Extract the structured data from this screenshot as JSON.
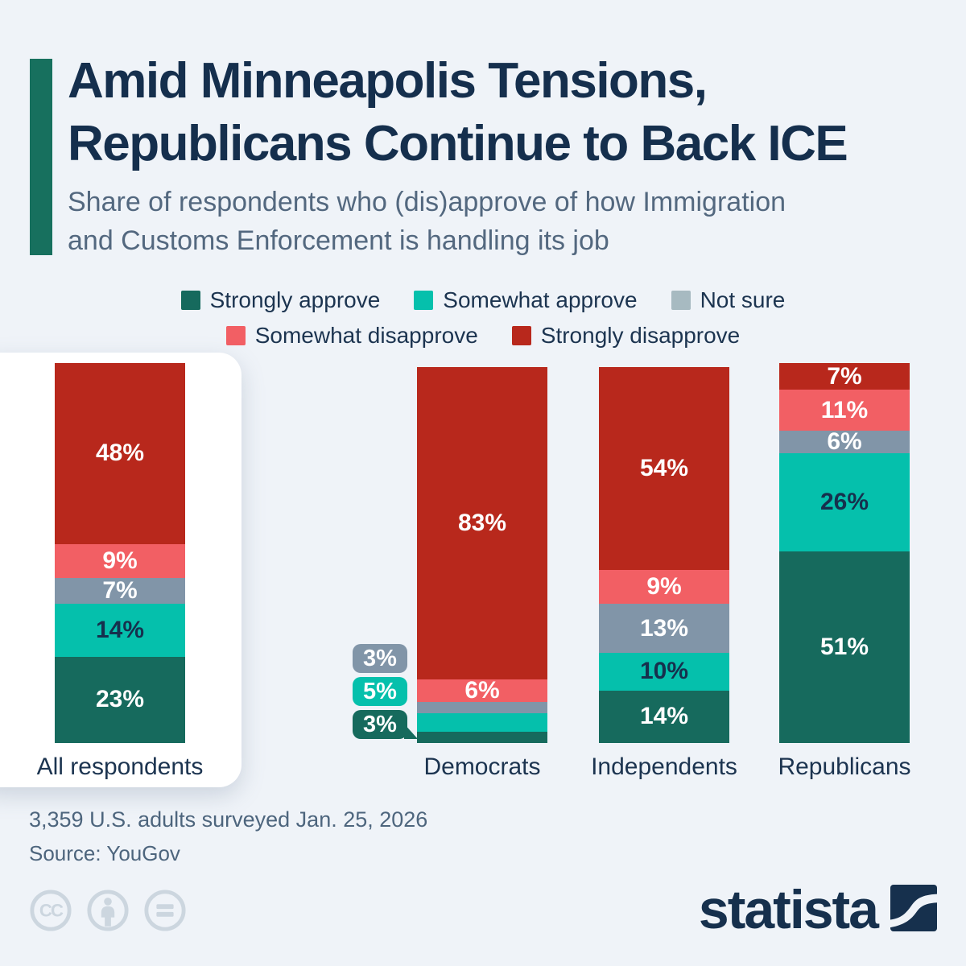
{
  "header": {
    "title": "Amid Minneapolis Tensions,\nRepublicans Continue to Back ICE",
    "subtitle": "Share of respondents who (dis)approve of how Immigration\nand Customs Enforcement is handling its job"
  },
  "colors": {
    "background": "#eff3f8",
    "accent_bar": "#17705e",
    "title_text": "#152f4d",
    "subtitle_text": "#53687f",
    "body_text": "#1c3450",
    "footer_text": "#4d657d",
    "cc_icon": "#ccd6df",
    "logo_navy": "#16304d",
    "card": "#ffffff"
  },
  "chart_data": {
    "type": "bar",
    "subtype": "stacked-100-percent",
    "unit": "%",
    "series": [
      {
        "name": "Strongly approve",
        "color": "#166a5d",
        "label_color": "#ffffff"
      },
      {
        "name": "Somewhat approve",
        "color": "#05c0ac",
        "label_color": "#16304d"
      },
      {
        "name": "Not sure",
        "color": "#8195a8",
        "legend_color": "#a7bac1",
        "label_color": "#ffffff"
      },
      {
        "name": "Somewhat disapprove",
        "color": "#f25f64",
        "label_color": "#ffffff"
      },
      {
        "name": "Strongly disapprove",
        "color": "#b8281c",
        "label_color": "#ffffff"
      }
    ],
    "categories": [
      "All respondents",
      "Democrats",
      "Independents",
      "Republicans"
    ],
    "groups": [
      {
        "label": "All respondents",
        "highlighted": true,
        "values": [
          23,
          14,
          7,
          9,
          48
        ]
      },
      {
        "label": "Democrats",
        "highlighted": false,
        "values": [
          3,
          5,
          3,
          6,
          83
        ]
      },
      {
        "label": "Independents",
        "highlighted": false,
        "values": [
          14,
          10,
          13,
          9,
          54
        ]
      },
      {
        "label": "Republicans",
        "highlighted": false,
        "values": [
          51,
          26,
          6,
          11,
          7
        ]
      }
    ],
    "value_suffix": "%",
    "legend_position": "top",
    "grid": false
  },
  "footer": {
    "note": "3,359 U.S. adults surveyed Jan. 25, 2026",
    "source": "Source: YouGov"
  },
  "license_icons": [
    "cc-icon",
    "cc-by-person-icon",
    "cc-nd-equals-icon"
  ],
  "branding": {
    "logo_text": "statista"
  }
}
